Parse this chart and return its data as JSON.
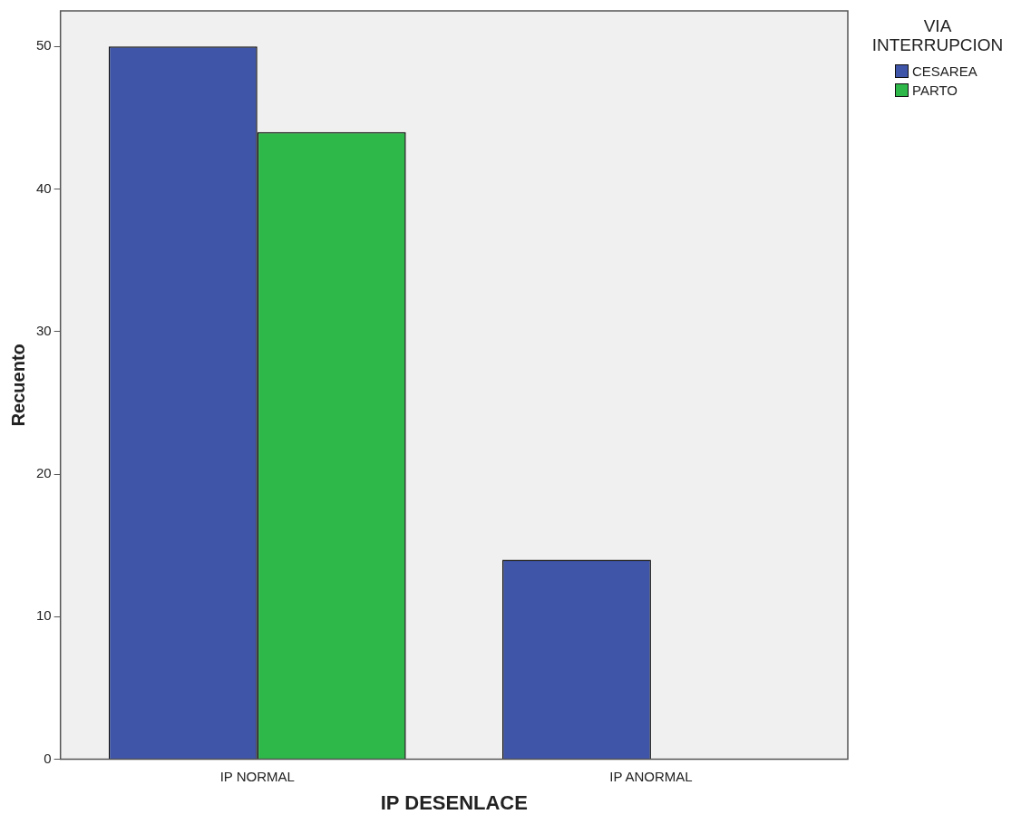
{
  "chart_data": {
    "type": "bar",
    "xlabel": "IP DESENLACE",
    "ylabel": "Recuento",
    "legend_title": "VIA INTERRUPCION",
    "categories": [
      "IP NORMAL",
      "IP ANORMAL"
    ],
    "series": [
      {
        "name": "CESAREA",
        "color": "#3f55a8",
        "values": [
          50,
          14
        ]
      },
      {
        "name": "PARTO",
        "color": "#2eb84a",
        "values": [
          44,
          null
        ]
      }
    ],
    "ylim": [
      0,
      52.5
    ],
    "yticks": [
      0,
      10,
      20,
      30,
      40,
      50
    ],
    "grid": false,
    "legend": "top right"
  }
}
